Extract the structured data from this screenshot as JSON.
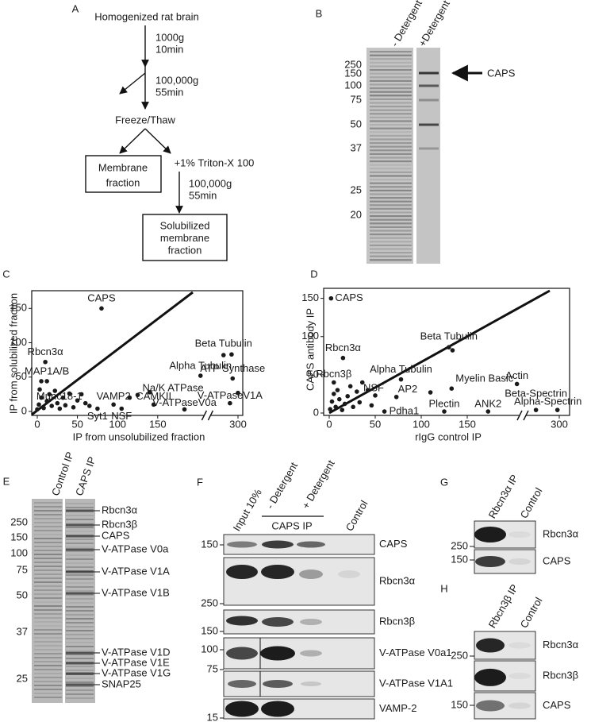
{
  "panel_A": {
    "letter": "A",
    "start": "Homogenized rat brain",
    "spin1": [
      "1000g",
      "10min"
    ],
    "spin2": [
      "100,000g",
      "55min"
    ],
    "step": "Freeze/Thaw",
    "pellet": [
      "Membrane",
      "fraction"
    ],
    "treatment": "+1% Triton-X 100",
    "spin3": [
      "100,000g",
      "55min"
    ],
    "product": [
      "Solubilized",
      "membrane",
      "fraction"
    ]
  },
  "panel_B": {
    "letter": "B",
    "lanes": [
      "- Detergent",
      "+Detergent"
    ],
    "markers": [
      250,
      150,
      100,
      75,
      50,
      37,
      25,
      20
    ],
    "arrow_label": "CAPS"
  },
  "chart_data": [
    {
      "type": "scatter",
      "letter": "C",
      "xlabel": "IP from unsolubilized fraction",
      "ylabel": "IP from solubilized fraction",
      "color": "#1a1a1a",
      "x_axis_break": true,
      "xlim": [
        0,
        300
      ],
      "xticks": [
        0,
        50,
        100,
        150,
        300
      ],
      "ylim": [
        0,
        170
      ],
      "yticks": [
        0,
        50,
        100,
        150
      ],
      "x": [
        80,
        10,
        5,
        12,
        230,
        273,
        288,
        290,
        125,
        60,
        75,
        95,
        105,
        145,
        200,
        285,
        300,
        115,
        140,
        2,
        5,
        8,
        12,
        15,
        18,
        22,
        25,
        28,
        32,
        35,
        40,
        45,
        50,
        55,
        65,
        0,
        3
      ],
      "values": [
        150,
        72,
        44,
        44,
        52,
        82,
        83,
        48,
        24,
        12,
        4,
        10,
        4,
        10,
        3,
        12,
        27,
        20,
        28,
        10,
        20,
        5,
        15,
        25,
        8,
        30,
        12,
        4,
        20,
        9,
        26,
        6,
        16,
        25,
        8,
        3,
        32
      ],
      "labels": [
        "CAPS",
        "Rbcn3α",
        null,
        "MAP1A/B",
        "Alpha Tubulin",
        "Beta Tubulin",
        null,
        "ATP Synthase",
        "Na/K ATPase",
        "Munc18-1",
        "Syt1",
        "VAMP2",
        "NSF",
        "CAMKII",
        "V-ATPaseV0a",
        "V-ATPaseV1A",
        null,
        null,
        null,
        null,
        null,
        null,
        null,
        null,
        null,
        null,
        null,
        null,
        null,
        null,
        null,
        null,
        null,
        null,
        null,
        null,
        null
      ]
    },
    {
      "type": "scatter",
      "letter": "D",
      "xlabel": "rIgG control IP",
      "ylabel": "CAPS antibody IP",
      "color": "#1a1a1a",
      "x_axis_break": true,
      "xlim": [
        0,
        300
      ],
      "xticks": [
        0,
        50,
        100,
        150,
        300
      ],
      "ylim": [
        0,
        160
      ],
      "yticks": [
        0,
        50,
        100,
        150
      ],
      "x": [
        2,
        15,
        78,
        130,
        134,
        5,
        50,
        73,
        60,
        133,
        110,
        125,
        184,
        231,
        262,
        297,
        1,
        3,
        5,
        7,
        9,
        11,
        14,
        17,
        20,
        23,
        26,
        30,
        33,
        36,
        42,
        46
      ],
      "values": [
        150,
        72,
        44,
        86,
        82,
        40,
        23,
        21,
        2,
        32,
        27,
        2,
        2,
        38,
        4,
        4,
        5,
        15,
        25,
        8,
        30,
        18,
        4,
        12,
        22,
        35,
        8,
        28,
        14,
        40,
        30,
        10
      ],
      "labels": [
        "CAPS",
        "Rbcn3α",
        "Alpha Tubulin",
        "Beta Tubulin",
        null,
        "Rbcn3β",
        "NSF",
        "AP2",
        "Pdha1",
        "Myelin Basic",
        null,
        "Plectin",
        "ANK2",
        "Actin",
        "Beta-Spectrin",
        "Alpha-Spectrin",
        null,
        null,
        null,
        null,
        null,
        null,
        null,
        null,
        null,
        null,
        null,
        null,
        null,
        null,
        null,
        null
      ]
    }
  ],
  "panel_E": {
    "letter": "E",
    "lanes": [
      "Control IP",
      "CAPS IP"
    ],
    "markers": [
      250,
      150,
      100,
      75,
      50,
      37,
      25
    ],
    "bands": [
      "Rbcn3α",
      "Rbcn3β",
      "CAPS",
      "V-ATPase V0a",
      "V-ATPase V1A",
      "V-ATPase V1B",
      "V-ATPase V1D",
      "V-ATPase V1E",
      "V-ATPase V1G",
      "SNAP25"
    ]
  },
  "panel_F": {
    "letter": "F",
    "lanes": [
      "Input 10%",
      "- Detergent",
      "+ Detergent",
      "Control"
    ],
    "group": "CAPS IP",
    "blots": [
      {
        "label": "CAPS",
        "marker": 150
      },
      {
        "label": "Rbcn3α",
        "marker": 250
      },
      {
        "label": "Rbcn3β",
        "marker": 150
      },
      {
        "label": "V-ATPase V0a1",
        "marker": 100
      },
      {
        "label": "V-ATPase V1A1",
        "marker": 75
      },
      {
        "label": "VAMP-2",
        "marker": 15
      }
    ]
  },
  "panel_G": {
    "letter": "G",
    "lanes": [
      "Rbcn3α IP",
      "Control"
    ],
    "blots": [
      {
        "label": "Rbcn3α",
        "marker": 250
      },
      {
        "label": "CAPS",
        "marker": 150
      }
    ]
  },
  "panel_H": {
    "letter": "H",
    "lanes": [
      "Rbcn3β IP",
      "Control"
    ],
    "blots": [
      {
        "label": "Rbcn3α",
        "marker": 250
      },
      {
        "label": "Rbcn3β"
      },
      {
        "label": "CAPS",
        "marker": 150
      }
    ]
  }
}
